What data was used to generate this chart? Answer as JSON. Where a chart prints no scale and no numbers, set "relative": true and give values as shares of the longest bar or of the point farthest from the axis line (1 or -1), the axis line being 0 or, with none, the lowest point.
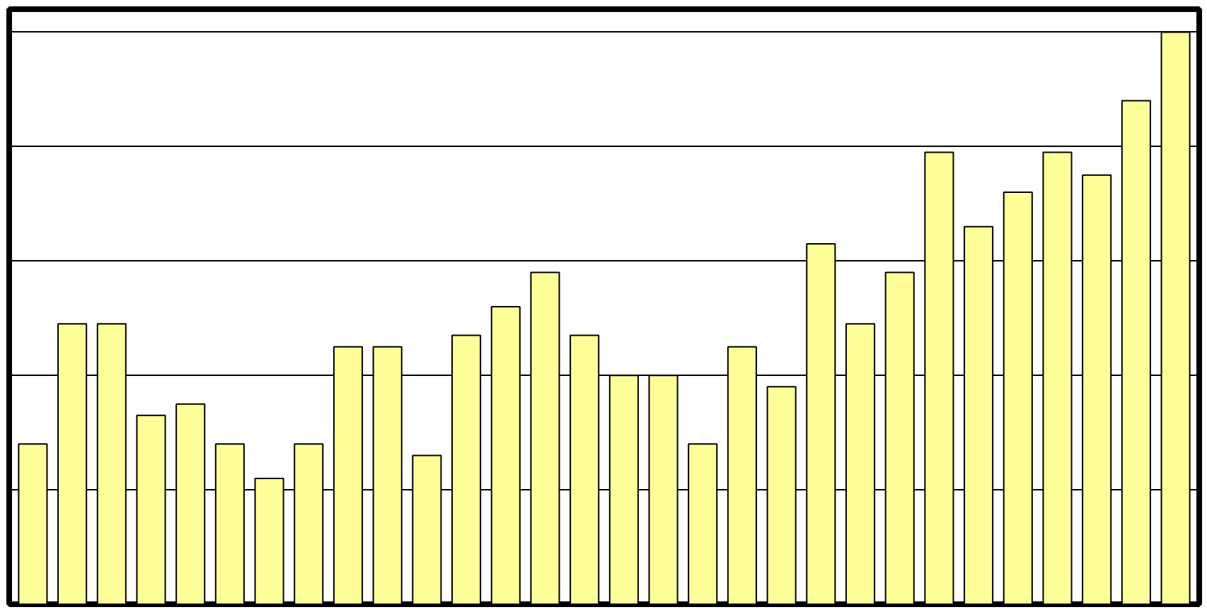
{
  "chart_data": {
    "type": "bar",
    "relative": true,
    "grid": "y",
    "color": "#ffff99",
    "categories": [
      null,
      null,
      null,
      null,
      null,
      null,
      null,
      null,
      null,
      null,
      null,
      null,
      null,
      null,
      null,
      null,
      null,
      null,
      null,
      null,
      null,
      null,
      null,
      null,
      null,
      null,
      null,
      null,
      null,
      null
    ],
    "values": [
      0.28,
      0.49,
      0.49,
      0.33,
      0.35,
      0.28,
      0.22,
      0.28,
      0.45,
      0.45,
      0.26,
      0.47,
      0.52,
      0.58,
      0.47,
      0.4,
      0.4,
      0.28,
      0.45,
      0.38,
      0.63,
      0.49,
      0.58,
      0.79,
      0.66,
      0.72,
      0.79,
      0.75,
      0.88,
      1
    ]
  }
}
